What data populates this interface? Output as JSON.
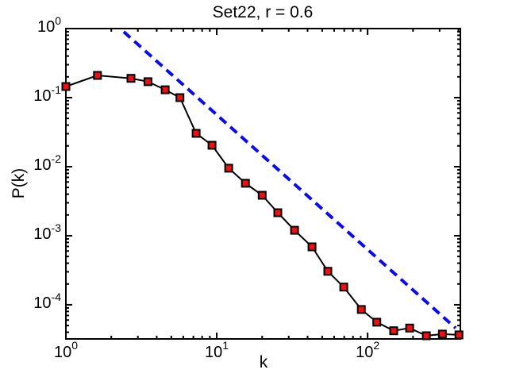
{
  "figure": {
    "background": "#ffffff",
    "axis_color": "#000000"
  },
  "chart_data": {
    "type": "line",
    "title": "Set22, r = 0.6",
    "xlabel": "k",
    "ylabel": "P(k)",
    "xscale": "log",
    "yscale": "log",
    "xlim": [
      1,
      412
    ],
    "ylim": [
      3.2e-05,
      1
    ],
    "grid": false,
    "legend": null,
    "x_major_ticks": {
      "values": [
        1,
        10,
        100
      ],
      "label_base": "10",
      "exponents": [
        "0",
        "1",
        "2"
      ]
    },
    "y_major_ticks": {
      "values": [
        1,
        0.1,
        0.01,
        0.001,
        0.0001
      ],
      "label_base": "10",
      "exponents": [
        "0",
        "-1",
        "-2",
        "-3",
        "-4"
      ]
    },
    "series": [
      {
        "name": "degree-distribution",
        "style": "solid-line-with-square-markers",
        "line_color": "#000000",
        "marker_fill_color": "#ee1111",
        "marker_edge_color": "#000000",
        "points": [
          [
            1.0,
            0.145
          ],
          [
            1.62,
            0.21
          ],
          [
            2.7,
            0.19
          ],
          [
            3.5,
            0.17
          ],
          [
            4.55,
            0.13
          ],
          [
            5.7,
            0.1
          ],
          [
            7.3,
            0.0304
          ],
          [
            9.3,
            0.0204
          ],
          [
            12.0,
            0.0095
          ],
          [
            15.5,
            0.00575
          ],
          [
            20.0,
            0.00385
          ],
          [
            25.4,
            0.00215
          ],
          [
            32.8,
            0.0012
          ],
          [
            42.8,
            0.00069
          ],
          [
            54.5,
            0.000305
          ],
          [
            69.5,
            0.00018
          ],
          [
            90.8,
            8.55e-05
          ],
          [
            115.0,
            5.6e-05
          ],
          [
            149.0,
            4.2e-05
          ],
          [
            190.0,
            4.6e-05
          ],
          [
            245.0,
            3.56e-05
          ],
          [
            313.0,
            3.76e-05
          ],
          [
            403.0,
            3.66e-05
          ]
        ]
      },
      {
        "name": "power-law-guide",
        "style": "dashed-line",
        "line_color": "#0a0af0",
        "slope": -2,
        "points": [
          [
            2.42,
            0.9
          ],
          [
            383.0,
            4.6e-05
          ]
        ]
      }
    ]
  }
}
